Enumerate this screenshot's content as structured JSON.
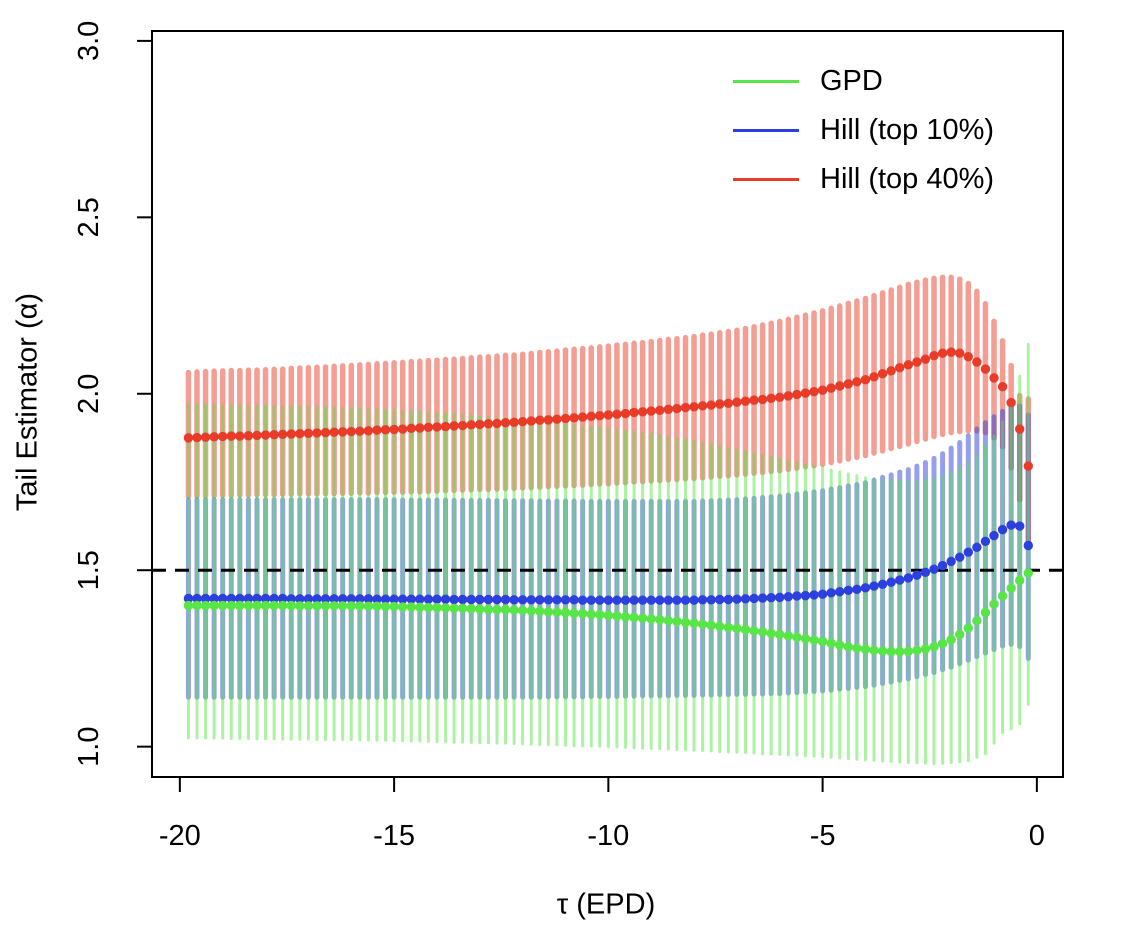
{
  "chart_data": {
    "type": "line",
    "subtype": "point-estimates-with-error-bars",
    "title": "",
    "xlabel": "τ (EPD)",
    "ylabel": "Tail Estimator (α)",
    "x_ticks": [
      -20,
      -15,
      -10,
      -5,
      0
    ],
    "x_tick_labels": [
      "-20",
      "-15",
      "-10",
      "-5",
      "0"
    ],
    "y_ticks": [
      1.0,
      1.5,
      2.0,
      2.5,
      3.0
    ],
    "y_tick_labels": [
      "1.0",
      "1.5",
      "2.0",
      "2.5",
      "3.0"
    ],
    "axis_range": {
      "x": [
        -20.65,
        0.61
      ],
      "y": [
        0.914,
        3.028
      ]
    },
    "grid": "off",
    "legend_position": "top-right",
    "reference_line": {
      "y": 1.5,
      "style": "dashed",
      "color": "#000000"
    },
    "x": [
      -19.8,
      -19.6,
      -19.4,
      -19.2,
      -19.0,
      -18.8,
      -18.6,
      -18.4,
      -18.2,
      -18.0,
      -17.8,
      -17.6,
      -17.4,
      -17.2,
      -17.0,
      -16.8,
      -16.6,
      -16.4,
      -16.2,
      -16.0,
      -15.8,
      -15.6,
      -15.4,
      -15.2,
      -15.0,
      -14.8,
      -14.6,
      -14.4,
      -14.2,
      -14.0,
      -13.8,
      -13.6,
      -13.4,
      -13.2,
      -13.0,
      -12.8,
      -12.6,
      -12.4,
      -12.2,
      -12.0,
      -11.8,
      -11.6,
      -11.4,
      -11.2,
      -11.0,
      -10.8,
      -10.6,
      -10.4,
      -10.2,
      -10.0,
      -9.8,
      -9.6,
      -9.4,
      -9.2,
      -9.0,
      -8.8,
      -8.6,
      -8.4,
      -8.2,
      -8.0,
      -7.8,
      -7.6,
      -7.4,
      -7.2,
      -7.0,
      -6.8,
      -6.6,
      -6.4,
      -6.2,
      -6.0,
      -5.8,
      -5.6,
      -5.4,
      -5.2,
      -5.0,
      -4.8,
      -4.6,
      -4.4,
      -4.2,
      -4.0,
      -3.8,
      -3.6,
      -3.4,
      -3.2,
      -3.0,
      -2.8,
      -2.6,
      -2.4,
      -2.2,
      -2.0,
      -1.8,
      -1.6,
      -1.4,
      -1.2,
      -1.0,
      -0.8,
      -0.6,
      -0.4,
      -0.2
    ],
    "series": [
      {
        "name": "GPD",
        "color": "#58E548",
        "ci_opacity": 0.5,
        "mid": [
          1.4,
          1.4,
          1.4,
          1.4,
          1.4,
          1.4,
          1.4,
          1.4,
          1.4,
          1.4,
          1.4,
          1.4,
          1.4,
          1.399,
          1.399,
          1.399,
          1.399,
          1.399,
          1.399,
          1.399,
          1.399,
          1.398,
          1.398,
          1.397,
          1.397,
          1.396,
          1.396,
          1.395,
          1.394,
          1.394,
          1.393,
          1.392,
          1.392,
          1.391,
          1.39,
          1.389,
          1.388,
          1.388,
          1.387,
          1.386,
          1.385,
          1.384,
          1.382,
          1.381,
          1.38,
          1.378,
          1.377,
          1.375,
          1.374,
          1.372,
          1.37,
          1.368,
          1.366,
          1.364,
          1.362,
          1.36,
          1.357,
          1.355,
          1.352,
          1.35,
          1.347,
          1.344,
          1.341,
          1.338,
          1.335,
          1.332,
          1.328,
          1.325,
          1.321,
          1.318,
          1.314,
          1.31,
          1.306,
          1.302,
          1.298,
          1.293,
          1.288,
          1.283,
          1.279,
          1.276,
          1.273,
          1.271,
          1.269,
          1.269,
          1.27,
          1.273,
          1.277,
          1.283,
          1.292,
          1.303,
          1.318,
          1.336,
          1.357,
          1.38,
          1.404,
          1.427,
          1.449,
          1.471,
          1.492
        ],
        "lo": [
          1.025,
          1.025,
          1.024,
          1.024,
          1.024,
          1.023,
          1.023,
          1.023,
          1.022,
          1.022,
          1.022,
          1.021,
          1.021,
          1.021,
          1.021,
          1.02,
          1.02,
          1.02,
          1.02,
          1.02,
          1.019,
          1.019,
          1.018,
          1.018,
          1.017,
          1.017,
          1.016,
          1.016,
          1.015,
          1.014,
          1.014,
          1.013,
          1.013,
          1.012,
          1.011,
          1.011,
          1.01,
          1.01,
          1.009,
          1.008,
          1.007,
          1.006,
          1.006,
          1.005,
          1.004,
          1.003,
          1.002,
          1.002,
          1.001,
          1.0,
          0.999,
          0.998,
          0.997,
          0.996,
          0.995,
          0.994,
          0.993,
          0.992,
          0.991,
          0.99,
          0.989,
          0.988,
          0.986,
          0.985,
          0.984,
          0.983,
          0.982,
          0.98,
          0.979,
          0.978,
          0.977,
          0.976,
          0.974,
          0.973,
          0.972,
          0.97,
          0.968,
          0.966,
          0.964,
          0.962,
          0.961,
          0.959,
          0.958,
          0.956,
          0.955,
          0.954,
          0.953,
          0.952,
          0.953,
          0.955,
          0.957,
          0.96,
          0.97,
          0.98,
          1.01,
          1.04,
          1.05,
          1.065,
          1.12
        ],
        "hi": [
          1.97,
          1.969,
          1.969,
          1.968,
          1.967,
          1.967,
          1.966,
          1.966,
          1.965,
          1.965,
          1.964,
          1.964,
          1.963,
          1.962,
          1.962,
          1.961,
          1.96,
          1.96,
          1.959,
          1.958,
          1.957,
          1.955,
          1.954,
          1.953,
          1.952,
          1.95,
          1.949,
          1.948,
          1.946,
          1.945,
          1.943,
          1.941,
          1.939,
          1.937,
          1.935,
          1.933,
          1.931,
          1.929,
          1.927,
          1.925,
          1.923,
          1.92,
          1.918,
          1.915,
          1.913,
          1.91,
          1.908,
          1.905,
          1.903,
          1.9,
          1.897,
          1.894,
          1.891,
          1.888,
          1.885,
          1.881,
          1.877,
          1.873,
          1.869,
          1.865,
          1.86,
          1.855,
          1.85,
          1.845,
          1.84,
          1.835,
          1.83,
          1.825,
          1.82,
          1.815,
          1.81,
          1.805,
          1.8,
          1.795,
          1.79,
          1.784,
          1.779,
          1.773,
          1.768,
          1.762,
          1.76,
          1.758,
          1.755,
          1.753,
          1.752,
          1.754,
          1.756,
          1.76,
          1.765,
          1.777,
          1.79,
          1.807,
          1.825,
          1.852,
          1.88,
          1.92,
          1.975,
          2.05,
          2.14
        ]
      },
      {
        "name": "Hill (top 10%)",
        "color": "#2B40DC",
        "ci_opacity": 0.5,
        "mid": [
          1.42,
          1.42,
          1.42,
          1.42,
          1.42,
          1.42,
          1.42,
          1.42,
          1.42,
          1.42,
          1.42,
          1.42,
          1.419,
          1.419,
          1.419,
          1.419,
          1.419,
          1.419,
          1.419,
          1.419,
          1.419,
          1.419,
          1.418,
          1.418,
          1.418,
          1.418,
          1.418,
          1.418,
          1.418,
          1.418,
          1.418,
          1.417,
          1.417,
          1.417,
          1.417,
          1.417,
          1.417,
          1.417,
          1.416,
          1.416,
          1.416,
          1.416,
          1.416,
          1.416,
          1.416,
          1.416,
          1.415,
          1.415,
          1.415,
          1.415,
          1.415,
          1.415,
          1.415,
          1.415,
          1.415,
          1.415,
          1.415,
          1.415,
          1.415,
          1.415,
          1.416,
          1.416,
          1.417,
          1.417,
          1.418,
          1.419,
          1.42,
          1.421,
          1.422,
          1.423,
          1.425,
          1.427,
          1.428,
          1.43,
          1.432,
          1.436,
          1.439,
          1.443,
          1.446,
          1.45,
          1.455,
          1.46,
          1.466,
          1.472,
          1.478,
          1.486,
          1.494,
          1.503,
          1.513,
          1.525,
          1.537,
          1.551,
          1.565,
          1.582,
          1.598,
          1.615,
          1.628,
          1.625,
          1.57
        ],
        "lo": [
          1.14,
          1.14,
          1.14,
          1.14,
          1.14,
          1.14,
          1.14,
          1.14,
          1.14,
          1.14,
          1.14,
          1.14,
          1.14,
          1.14,
          1.14,
          1.14,
          1.14,
          1.14,
          1.14,
          1.14,
          1.14,
          1.14,
          1.14,
          1.14,
          1.14,
          1.14,
          1.14,
          1.14,
          1.14,
          1.14,
          1.14,
          1.14,
          1.14,
          1.14,
          1.14,
          1.14,
          1.14,
          1.14,
          1.14,
          1.14,
          1.14,
          1.14,
          1.141,
          1.141,
          1.141,
          1.141,
          1.141,
          1.142,
          1.142,
          1.142,
          1.142,
          1.143,
          1.143,
          1.144,
          1.144,
          1.144,
          1.144,
          1.145,
          1.145,
          1.145,
          1.146,
          1.146,
          1.147,
          1.147,
          1.148,
          1.148,
          1.149,
          1.149,
          1.15,
          1.15,
          1.152,
          1.153,
          1.155,
          1.156,
          1.158,
          1.16,
          1.163,
          1.165,
          1.168,
          1.17,
          1.174,
          1.179,
          1.183,
          1.188,
          1.192,
          1.198,
          1.204,
          1.21,
          1.218,
          1.225,
          1.235,
          1.245,
          1.255,
          1.265,
          1.275,
          1.285,
          1.29,
          1.283,
          1.25
        ],
        "hi": [
          1.7,
          1.7,
          1.7,
          1.7,
          1.7,
          1.7,
          1.7,
          1.7,
          1.7,
          1.7,
          1.7,
          1.7,
          1.7,
          1.7,
          1.7,
          1.7,
          1.7,
          1.7,
          1.7,
          1.7,
          1.7,
          1.7,
          1.7,
          1.7,
          1.7,
          1.699,
          1.699,
          1.699,
          1.699,
          1.699,
          1.699,
          1.698,
          1.698,
          1.698,
          1.698,
          1.698,
          1.697,
          1.697,
          1.697,
          1.697,
          1.697,
          1.696,
          1.696,
          1.696,
          1.696,
          1.696,
          1.695,
          1.695,
          1.695,
          1.695,
          1.695,
          1.695,
          1.695,
          1.695,
          1.695,
          1.695,
          1.695,
          1.695,
          1.695,
          1.695,
          1.696,
          1.697,
          1.698,
          1.699,
          1.7,
          1.702,
          1.704,
          1.706,
          1.708,
          1.71,
          1.713,
          1.716,
          1.719,
          1.722,
          1.725,
          1.73,
          1.734,
          1.739,
          1.743,
          1.748,
          1.755,
          1.763,
          1.77,
          1.778,
          1.785,
          1.795,
          1.805,
          1.817,
          1.83,
          1.846,
          1.862,
          1.881,
          1.9,
          1.918,
          1.935,
          1.95,
          1.968,
          1.965,
          1.94
        ]
      },
      {
        "name": "Hill (top 40%)",
        "color": "#E83B28",
        "ci_opacity": 0.5,
        "mid": [
          1.875,
          1.876,
          1.877,
          1.878,
          1.879,
          1.88,
          1.88,
          1.881,
          1.882,
          1.883,
          1.884,
          1.885,
          1.886,
          1.887,
          1.888,
          1.889,
          1.89,
          1.891,
          1.892,
          1.893,
          1.894,
          1.895,
          1.897,
          1.898,
          1.899,
          1.9,
          1.902,
          1.903,
          1.905,
          1.906,
          1.907,
          1.909,
          1.91,
          1.912,
          1.913,
          1.915,
          1.916,
          1.918,
          1.919,
          1.921,
          1.923,
          1.925,
          1.926,
          1.928,
          1.93,
          1.932,
          1.934,
          1.936,
          1.938,
          1.94,
          1.942,
          1.944,
          1.947,
          1.949,
          1.951,
          1.953,
          1.956,
          1.958,
          1.961,
          1.963,
          1.966,
          1.968,
          1.971,
          1.973,
          1.976,
          1.979,
          1.982,
          1.984,
          1.987,
          1.99,
          1.994,
          1.998,
          2.002,
          2.006,
          2.01,
          2.016,
          2.022,
          2.028,
          2.034,
          2.04,
          2.048,
          2.057,
          2.065,
          2.074,
          2.082,
          2.09,
          2.098,
          2.108,
          2.115,
          2.118,
          2.115,
          2.105,
          2.09,
          2.07,
          2.045,
          2.02,
          1.975,
          1.9,
          1.795
        ],
        "lo": [
          1.71,
          1.71,
          1.711,
          1.711,
          1.712,
          1.712,
          1.713,
          1.713,
          1.714,
          1.714,
          1.714,
          1.715,
          1.715,
          1.716,
          1.716,
          1.716,
          1.717,
          1.717,
          1.718,
          1.718,
          1.719,
          1.719,
          1.72,
          1.72,
          1.721,
          1.721,
          1.722,
          1.722,
          1.723,
          1.724,
          1.725,
          1.726,
          1.727,
          1.728,
          1.729,
          1.729,
          1.73,
          1.731,
          1.732,
          1.733,
          1.734,
          1.735,
          1.737,
          1.738,
          1.739,
          1.74,
          1.741,
          1.743,
          1.744,
          1.745,
          1.747,
          1.748,
          1.75,
          1.751,
          1.753,
          1.754,
          1.756,
          1.757,
          1.759,
          1.76,
          1.762,
          1.764,
          1.766,
          1.768,
          1.77,
          1.772,
          1.775,
          1.777,
          1.78,
          1.782,
          1.786,
          1.789,
          1.793,
          1.796,
          1.8,
          1.805,
          1.81,
          1.815,
          1.82,
          1.825,
          1.832,
          1.838,
          1.845,
          1.851,
          1.858,
          1.865,
          1.872,
          1.879,
          1.885,
          1.89,
          1.893,
          1.895,
          1.895,
          1.89,
          1.875,
          1.85,
          1.79,
          1.7,
          1.58
        ],
        "hi": [
          2.06,
          2.062,
          2.063,
          2.064,
          2.065,
          2.066,
          2.066,
          2.067,
          2.067,
          2.068,
          2.069,
          2.07,
          2.072,
          2.073,
          2.074,
          2.075,
          2.076,
          2.078,
          2.079,
          2.08,
          2.082,
          2.083,
          2.085,
          2.086,
          2.088,
          2.089,
          2.091,
          2.092,
          2.094,
          2.095,
          2.097,
          2.098,
          2.1,
          2.102,
          2.104,
          2.105,
          2.107,
          2.109,
          2.11,
          2.112,
          2.114,
          2.117,
          2.119,
          2.121,
          2.124,
          2.126,
          2.128,
          2.13,
          2.133,
          2.135,
          2.138,
          2.14,
          2.143,
          2.145,
          2.148,
          2.151,
          2.154,
          2.156,
          2.159,
          2.162,
          2.166,
          2.169,
          2.173,
          2.176,
          2.18,
          2.185,
          2.19,
          2.195,
          2.2,
          2.205,
          2.211,
          2.217,
          2.223,
          2.229,
          2.235,
          2.242,
          2.249,
          2.256,
          2.263,
          2.27,
          2.278,
          2.286,
          2.294,
          2.302,
          2.31,
          2.316,
          2.322,
          2.327,
          2.33,
          2.33,
          2.325,
          2.312,
          2.29,
          2.255,
          2.205,
          2.15,
          2.08,
          1.995,
          1.985
        ]
      }
    ]
  }
}
